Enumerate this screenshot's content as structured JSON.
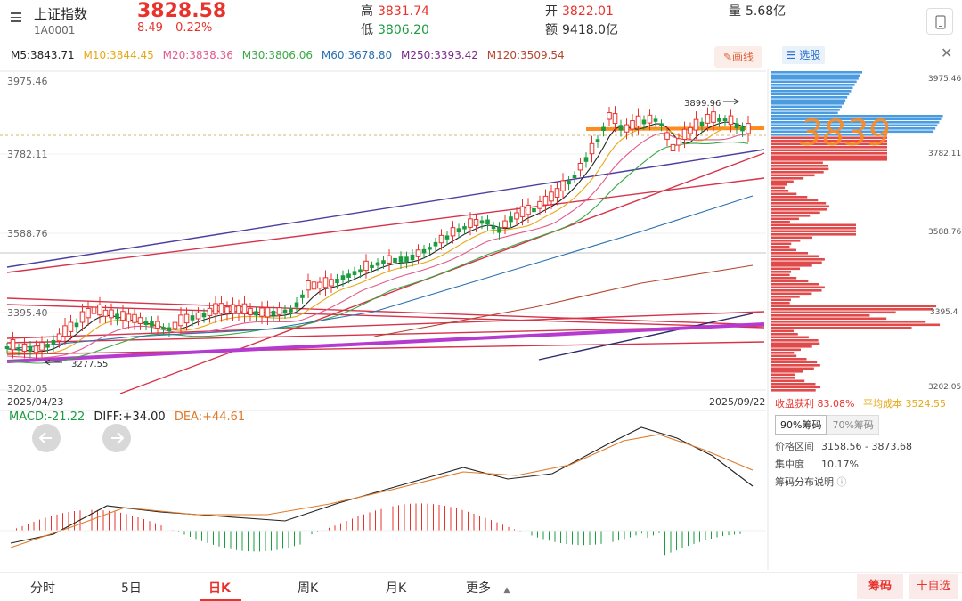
{
  "header": {
    "name": "上证指数",
    "code": "1A0001",
    "price": "3828.58",
    "change": "8.49",
    "change_pct": "0.22%",
    "high_label": "高",
    "high": "3831.74",
    "low_label": "低",
    "low": "3806.20",
    "open_label": "开",
    "open": "3822.01",
    "amount_label": "额",
    "amount": "9418.0亿",
    "volume_label": "量",
    "volume": "5.68亿"
  },
  "ma": {
    "m5": "M5:3843.71",
    "m10": "M10:3844.45",
    "m20": "M20:3838.36",
    "m30": "M30:3806.06",
    "m60": "M60:3678.80",
    "m250": "M250:3393.42",
    "m120": "M120:3509.54",
    "draw_label": "画线"
  },
  "price_axis": [
    "3975.46",
    "3782.11",
    "3588.76",
    "3395.40",
    "3202.05"
  ],
  "right_axis": [
    "3975.46",
    "3782.11",
    "3588.76",
    "3395.4",
    "3202.05"
  ],
  "dates": {
    "start": "2025/04/23",
    "end": "2025/09/22"
  },
  "annotations": {
    "high": "3899.96",
    "low": "3277.55",
    "handwritten": "3839"
  },
  "macd": {
    "macd": "MACD:-21.22",
    "diff": "DIFF:+34.00",
    "dea": "DEA:+44.61"
  },
  "panel": {
    "select_label": "选股",
    "profit_label": "收盘获利",
    "profit": "83.08%",
    "avg_label": "平均成本",
    "avg": "3524.55",
    "tab90": "90%筹码",
    "tab70": "70%筹码",
    "range_label": "价格区间",
    "range": "3158.56 - 3873.68",
    "conc_label": "集中度",
    "conc": "10.17%",
    "desc_label": "筹码分布说明"
  },
  "nav": {
    "items": [
      "分时",
      "5日",
      "日K",
      "周K",
      "月K",
      "更多"
    ],
    "chouma": "筹码",
    "zixuan": "十自选"
  },
  "colors": {
    "up": "#e8332c",
    "down": "#1a9c3f",
    "accent": "#ff8a1f"
  }
}
